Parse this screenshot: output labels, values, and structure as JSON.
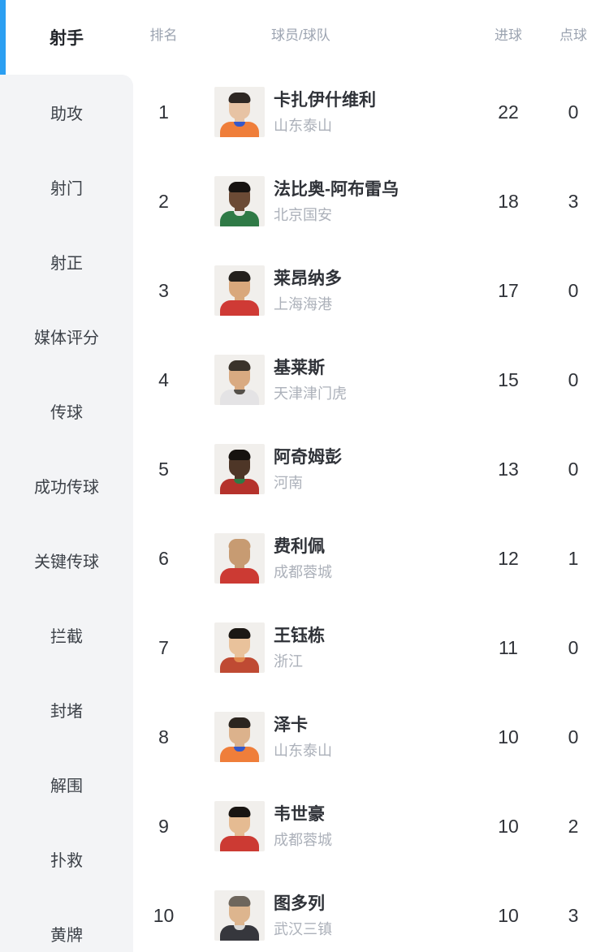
{
  "accent_color": "#2b9ff2",
  "sidebar": {
    "active": {
      "label": "射手"
    },
    "items": [
      "助攻",
      "射门",
      "射正",
      "媒体评分",
      "传球",
      "成功传球",
      "关键传球",
      "拦截",
      "封堵",
      "解围",
      "扑救",
      "黄牌"
    ]
  },
  "table": {
    "headers": {
      "rank": "排名",
      "player": "球员/球队",
      "goals": "进球",
      "penalties": "点球"
    },
    "rows": [
      {
        "rank": "1",
        "name": "卡扎伊什维利",
        "team": "山东泰山",
        "goals": "22",
        "penalties": "0",
        "avatar": {
          "skin": "#e7c3a4",
          "hair": "#2e2723",
          "jersey": "#ef7e3a",
          "jersey2": "#3558c9"
        }
      },
      {
        "rank": "2",
        "name": "法比奥-阿布雷乌",
        "team": "北京国安",
        "goals": "18",
        "penalties": "3",
        "avatar": {
          "skin": "#6b4a35",
          "hair": "#171311",
          "jersey": "#2f7a46",
          "jersey2": "#e8e6e2"
        }
      },
      {
        "rank": "3",
        "name": "莱昂纳多",
        "team": "上海海港",
        "goals": "17",
        "penalties": "0",
        "avatar": {
          "skin": "#d9a87c",
          "hair": "#23201c",
          "jersey": "#cf3a35",
          "jersey2": "#cf3a35"
        }
      },
      {
        "rank": "4",
        "name": "基莱斯",
        "team": "天津津门虎",
        "goals": "15",
        "penalties": "0",
        "avatar": {
          "skin": "#d9aa81",
          "hair": "#3a332b",
          "jersey": "#e4e3e5",
          "jersey2": "#55504a"
        }
      },
      {
        "rank": "5",
        "name": "阿奇姆彭",
        "team": "河南",
        "goals": "13",
        "penalties": "0",
        "avatar": {
          "skin": "#4e3627",
          "hair": "#16120f",
          "jersey": "#b5322c",
          "jersey2": "#2f7a46"
        }
      },
      {
        "rank": "6",
        "name": "费利佩",
        "team": "成都蓉城",
        "goals": "12",
        "penalties": "1",
        "avatar": {
          "skin": "#c79b72",
          "hair": "#c79b72",
          "jersey": "#cc3a33",
          "jersey2": "#cc3a33"
        }
      },
      {
        "rank": "7",
        "name": "王钰栋",
        "team": "浙江",
        "goals": "11",
        "penalties": "0",
        "avatar": {
          "skin": "#e9c29b",
          "hair": "#1c1814",
          "jersey": "#bf4a33",
          "jersey2": "#e28a4e"
        }
      },
      {
        "rank": "8",
        "name": "泽卡",
        "team": "山东泰山",
        "goals": "10",
        "penalties": "0",
        "avatar": {
          "skin": "#dcb28c",
          "hair": "#2c251f",
          "jersey": "#ef7e3a",
          "jersey2": "#3558c9"
        }
      },
      {
        "rank": "9",
        "name": "韦世豪",
        "team": "成都蓉城",
        "goals": "10",
        "penalties": "2",
        "avatar": {
          "skin": "#e5bb92",
          "hair": "#191512",
          "jersey": "#cc3a33",
          "jersey2": "#cc3a33"
        }
      },
      {
        "rank": "10",
        "name": "图多列",
        "team": "武汉三镇",
        "goals": "10",
        "penalties": "3",
        "avatar": {
          "skin": "#ddb58e",
          "hair": "#6e665c",
          "jersey": "#36373d",
          "jersey2": "#d9d8d6"
        }
      }
    ]
  }
}
